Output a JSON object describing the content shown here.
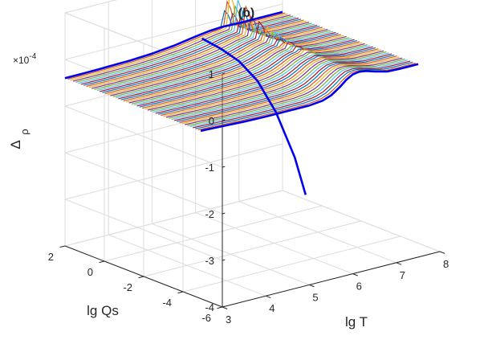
{
  "chart_data": {
    "type": "surface3d",
    "title": "(b)",
    "xlabel": "lg T",
    "ylabel": "lg Qs",
    "zlabel": "Δ",
    "zlabel_subscript": "ρ",
    "z_exponent_base": "×10",
    "z_exponent_power": "-4",
    "xlim": [
      3,
      8
    ],
    "ylim": [
      -6,
      2
    ],
    "zlim": [
      -4,
      1
    ],
    "xticks": [
      "3",
      "4",
      "5",
      "6",
      "7",
      "8"
    ],
    "yticks": [
      "-6",
      "-4",
      "-2",
      "0",
      "2"
    ],
    "zticks": [
      "-4",
      "-3",
      "-2",
      "-1",
      "0",
      "1"
    ],
    "grid": true,
    "slice_colors": [
      "#0072BD",
      "#D95319",
      "#EDB120",
      "#7E2F8E",
      "#77AC30",
      "#4DBEEE",
      "#A2142F"
    ],
    "highlight_color": "#0000EE",
    "surface": {
      "lgQs_range": [
        -4.9,
        2.0
      ],
      "lgT_range": [
        3.0,
        8.0
      ],
      "baseline_z": -0.4,
      "spike_lgT": 6.7,
      "spike_max_z": 1.0
    },
    "highlight_curves": [
      {
        "name": "front edge (lg Qs = -4.9)",
        "lgQs": -4.9,
        "points": [
          [
            3.0,
            -0.4
          ],
          [
            3.5,
            -0.42
          ],
          [
            4.0,
            -0.44
          ],
          [
            4.5,
            -0.45
          ],
          [
            5.0,
            -0.45
          ],
          [
            5.5,
            -0.45
          ],
          [
            5.8,
            -0.42
          ],
          [
            6.0,
            -0.35
          ],
          [
            6.2,
            -0.22
          ],
          [
            6.35,
            -0.1
          ],
          [
            6.5,
            -0.02
          ],
          [
            6.65,
            0.0
          ],
          [
            6.8,
            -0.02
          ],
          [
            7.0,
            -0.08
          ],
          [
            7.3,
            -0.15
          ],
          [
            7.6,
            -0.16
          ],
          [
            8.0,
            -0.16
          ]
        ]
      },
      {
        "name": "back edge (lg Qs = 2)",
        "lgQs": 2.0,
        "points": [
          [
            3.0,
            -0.4
          ],
          [
            3.5,
            -0.4
          ],
          [
            4.0,
            -0.39
          ],
          [
            4.5,
            -0.38
          ],
          [
            5.0,
            -0.35
          ],
          [
            5.5,
            -0.3
          ],
          [
            6.0,
            -0.22
          ],
          [
            6.3,
            -0.18
          ],
          [
            6.6,
            -0.16
          ],
          [
            7.0,
            -0.17
          ],
          [
            7.5,
            -0.17
          ],
          [
            8.0,
            -0.17
          ]
        ]
      },
      {
        "name": "transition curve",
        "points": [
          [
            6.15,
            2.0,
            -0.3
          ],
          [
            6.13,
            1.0,
            -0.35
          ],
          [
            6.1,
            0.0,
            -0.45
          ],
          [
            6.07,
            -1.0,
            -0.7
          ],
          [
            6.04,
            -2.0,
            -1.2
          ],
          [
            6.02,
            -3.0,
            -2.0
          ],
          [
            6.0,
            -3.6,
            -2.7
          ]
        ]
      }
    ]
  }
}
